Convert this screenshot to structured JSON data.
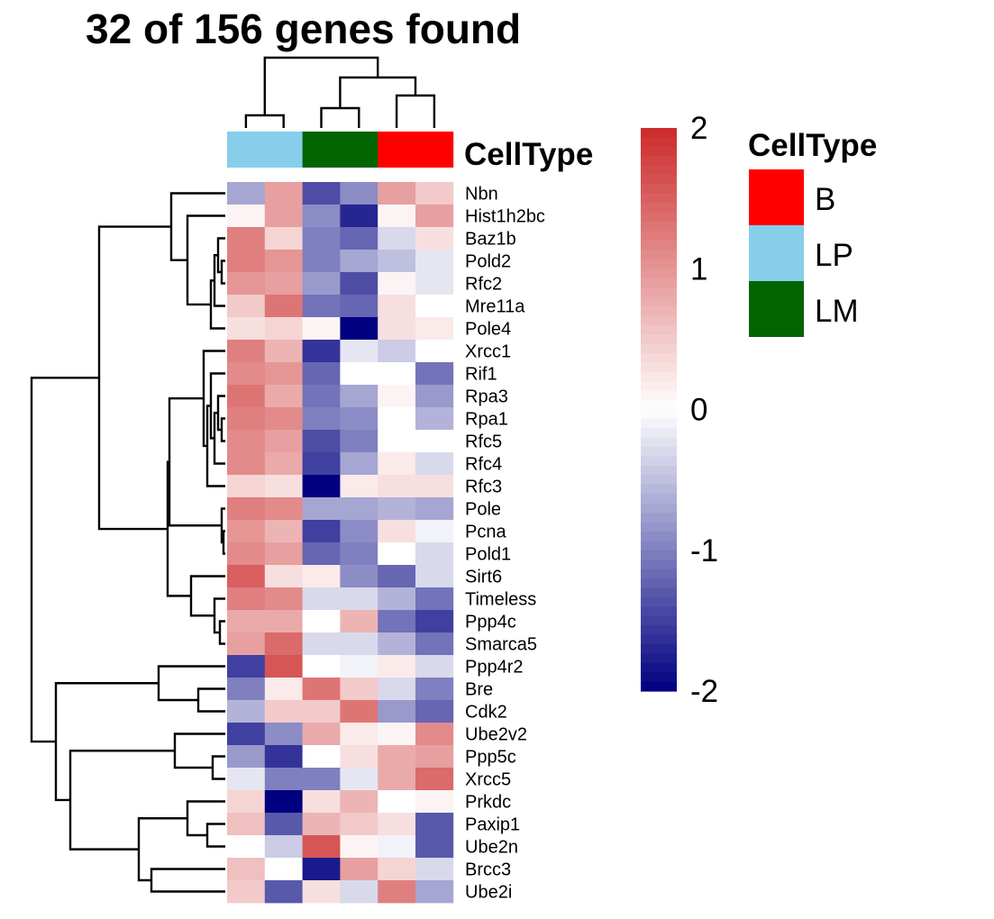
{
  "chart_data": {
    "type": "heatmap",
    "title": "32 of 156 genes found",
    "rows": [
      "Nbn",
      "Hist1h2bc",
      "Baz1b",
      "Pold2",
      "Rfc2",
      "Mre11a",
      "Pole4",
      "Xrcc1",
      "Rif1",
      "Rpa3",
      "Rpa1",
      "Rfc5",
      "Rfc4",
      "Rfc3",
      "Pole",
      "Pcna",
      "Pold1",
      "Sirt6",
      "Timeless",
      "Ppp4c",
      "Smarca5",
      "Ppp4r2",
      "Bre",
      "Cdk2",
      "Ube2v2",
      "Ppp5c",
      "Xrcc5",
      "Prkdc",
      "Paxip1",
      "Ube2n",
      "Brcc3",
      "Ube2i"
    ],
    "column_celltypes": [
      "LP",
      "LP",
      "LM",
      "LM",
      "B",
      "B"
    ],
    "values": [
      [
        -0.7,
        0.9,
        -1.4,
        -0.9,
        0.9,
        0.5
      ],
      [
        0.1,
        0.9,
        -0.9,
        -1.7,
        0.1,
        0.9
      ],
      [
        1.2,
        0.4,
        -1.0,
        -1.2,
        -0.3,
        0.3
      ],
      [
        1.2,
        1.0,
        -1.0,
        -0.7,
        -0.5,
        -0.2
      ],
      [
        1.0,
        0.9,
        -0.8,
        -1.4,
        0.1,
        -0.2
      ],
      [
        0.5,
        1.3,
        -1.1,
        -1.2,
        0.3,
        0.0
      ],
      [
        0.3,
        0.4,
        0.1,
        -2.0,
        0.3,
        0.2
      ],
      [
        1.2,
        0.7,
        -1.6,
        -0.2,
        -0.4,
        0.0
      ],
      [
        1.1,
        1.0,
        -1.2,
        0.0,
        0.0,
        -1.1
      ],
      [
        1.3,
        0.8,
        -1.1,
        -0.7,
        0.1,
        -0.8
      ],
      [
        1.2,
        1.1,
        -1.0,
        -0.9,
        0.0,
        -0.6
      ],
      [
        1.1,
        0.9,
        -1.4,
        -1.0,
        0.0,
        0.0
      ],
      [
        1.1,
        0.8,
        -1.5,
        -0.7,
        0.2,
        -0.3
      ],
      [
        0.4,
        0.3,
        -2.0,
        0.2,
        0.3,
        0.3
      ],
      [
        1.2,
        1.1,
        -0.7,
        -0.7,
        -0.6,
        -0.7
      ],
      [
        1.0,
        0.7,
        -1.5,
        -0.9,
        0.3,
        -0.1
      ],
      [
        1.1,
        0.9,
        -1.2,
        -1.0,
        0.0,
        -0.3
      ],
      [
        1.5,
        0.3,
        0.2,
        -0.9,
        -1.2,
        -0.3
      ],
      [
        1.2,
        1.1,
        -0.3,
        -0.3,
        -0.6,
        -1.1
      ],
      [
        0.8,
        0.8,
        0.0,
        0.7,
        -1.1,
        -1.5
      ],
      [
        0.9,
        1.4,
        -0.3,
        -0.3,
        -0.6,
        -1.1
      ],
      [
        -1.5,
        1.6,
        0.0,
        -0.1,
        0.2,
        -0.3
      ],
      [
        -1.0,
        0.2,
        1.3,
        0.5,
        -0.3,
        -1.0
      ],
      [
        -0.6,
        0.5,
        0.5,
        1.3,
        -0.8,
        -1.2
      ],
      [
        -1.5,
        -0.9,
        0.8,
        0.2,
        0.1,
        1.1
      ],
      [
        -0.8,
        -1.6,
        0.0,
        0.3,
        0.8,
        0.9
      ],
      [
        -0.2,
        -1.0,
        -1.0,
        -0.2,
        0.8,
        1.4
      ],
      [
        0.4,
        -2.0,
        0.3,
        0.7,
        0.0,
        0.1
      ],
      [
        0.6,
        -1.3,
        0.7,
        0.5,
        0.3,
        -1.3
      ],
      [
        0.0,
        -0.4,
        1.6,
        0.1,
        -0.1,
        -1.3
      ],
      [
        0.6,
        0.0,
        -1.8,
        0.9,
        0.4,
        -0.3
      ],
      [
        0.5,
        -1.3,
        0.3,
        -0.3,
        1.2,
        -0.7
      ]
    ],
    "color_scale": {
      "min": -2,
      "max": 2,
      "low": "#000080",
      "mid": "#ffffff",
      "high": "#cc2a2a"
    },
    "colorbar_ticks": [
      "2",
      "1",
      "0",
      "-1",
      "-2"
    ],
    "annotation": {
      "name": "CellType",
      "legend_title": "CellType",
      "legend": [
        {
          "label": "B",
          "color": "#ff0000"
        },
        {
          "label": "LP",
          "color": "#87ceeb"
        },
        {
          "label": "LM",
          "color": "#006400"
        }
      ]
    },
    "legend_position": "right",
    "grid": false
  }
}
